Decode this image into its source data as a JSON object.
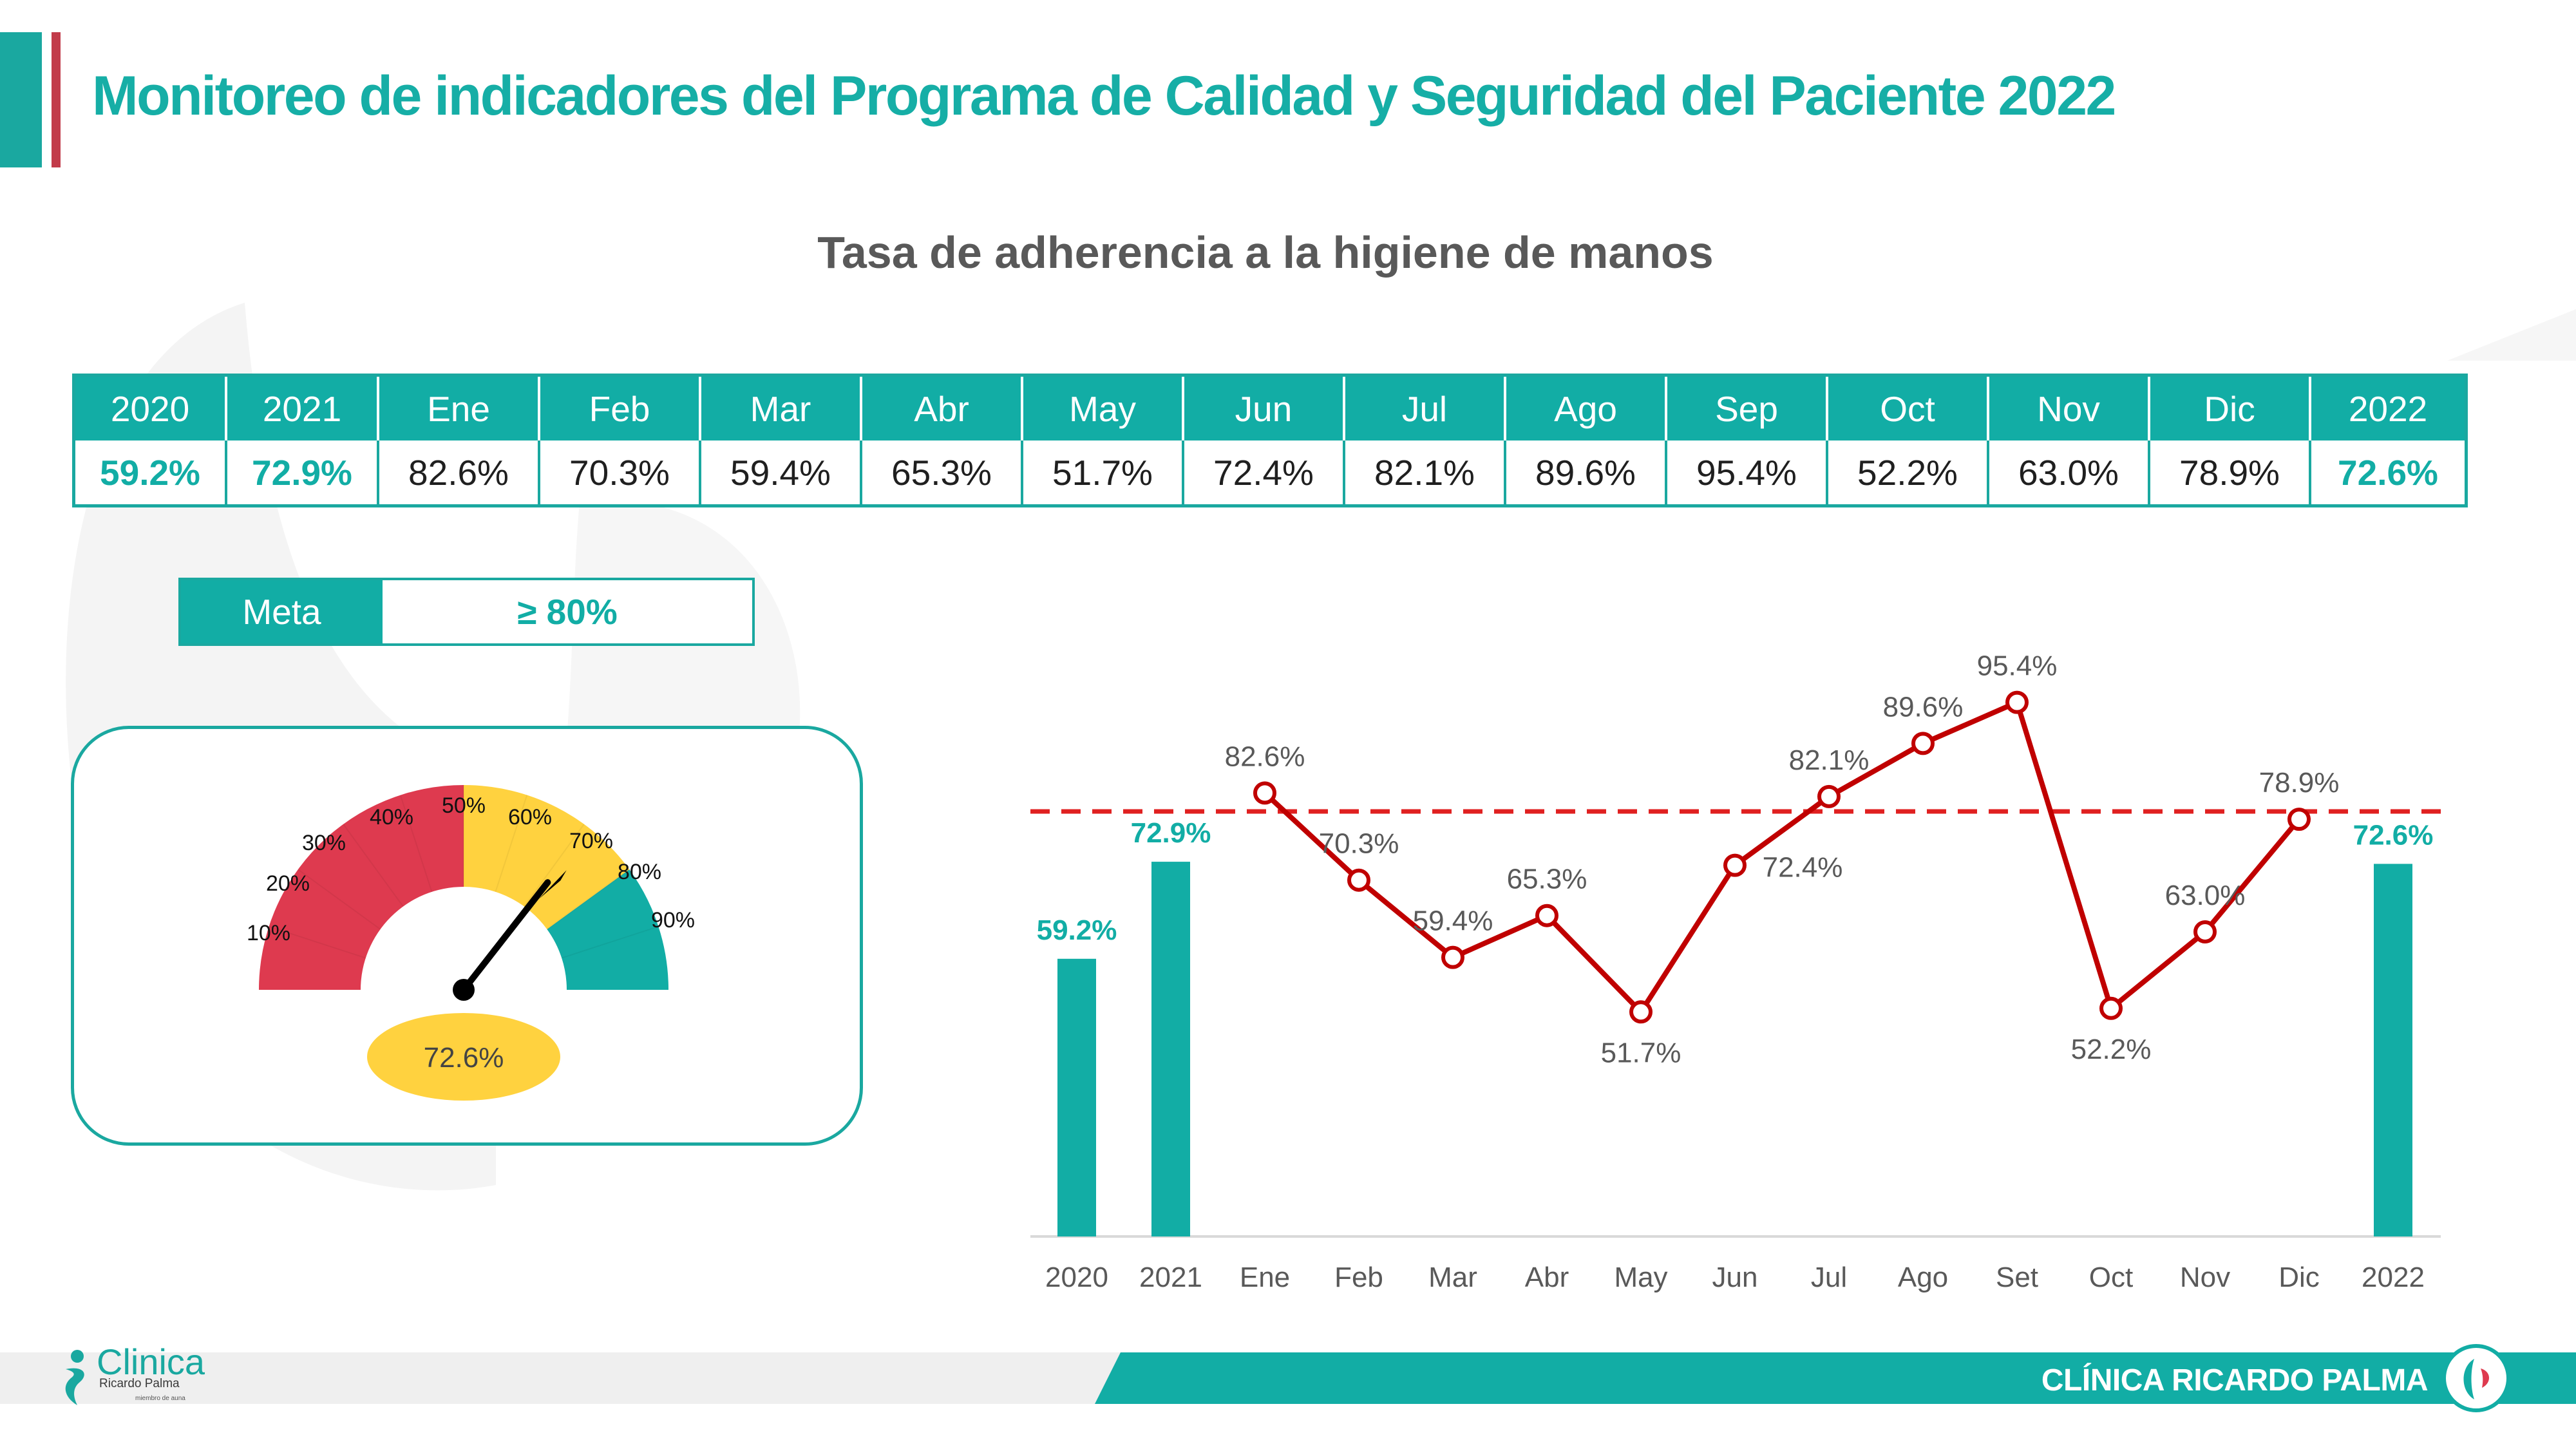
{
  "header": {
    "title": "Monitoreo de indicadores del Programa de Calidad y Seguridad del Paciente 2022",
    "chart_title": "Tasa de adherencia a la higiene de manos"
  },
  "table": {
    "headers": [
      "2020",
      "2021",
      "Ene",
      "Feb",
      "Mar",
      "Abr",
      "May",
      "Jun",
      "Jul",
      "Ago",
      "Sep",
      "Oct",
      "Nov",
      "Dic",
      "2022"
    ],
    "values": [
      "59.2%",
      "72.9%",
      "82.6%",
      "70.3%",
      "59.4%",
      "65.3%",
      "51.7%",
      "72.4%",
      "82.1%",
      "89.6%",
      "95.4%",
      "52.2%",
      "63.0%",
      "78.9%",
      "72.6%"
    ],
    "highlighted": [
      "2020",
      "2021",
      "2022"
    ]
  },
  "meta": {
    "label": "Meta",
    "value": "≥ 80%"
  },
  "gauge": {
    "value_label": "72.6%",
    "value": 72.6,
    "tick_labels": [
      "10%",
      "20%",
      "30%",
      "40%",
      "50%",
      "60%",
      "70%",
      "80%",
      "90%"
    ],
    "colors": {
      "red": "#de3a4f",
      "yellow": "#ffd23f",
      "teal": "#12ada5"
    }
  },
  "chart_data": {
    "type": "bar+line",
    "title": "",
    "categories": [
      "2020",
      "2021",
      "Ene",
      "Feb",
      "Mar",
      "Abr",
      "May",
      "Jun",
      "Jul",
      "Ago",
      "Set",
      "Oct",
      "Nov",
      "Dic",
      "2022"
    ],
    "bar_series": {
      "categories": [
        "2020",
        "2021",
        "2022"
      ],
      "values": [
        59.2,
        72.9,
        72.6
      ],
      "labels": [
        "59.2%",
        "72.9%",
        "72.6%"
      ],
      "color": "#12ada5"
    },
    "line_series": {
      "categories": [
        "Ene",
        "Feb",
        "Mar",
        "Abr",
        "May",
        "Jun",
        "Jul",
        "Ago",
        "Set",
        "Oct",
        "Nov",
        "Dic"
      ],
      "values": [
        82.6,
        70.3,
        59.4,
        65.3,
        51.7,
        72.4,
        82.1,
        89.6,
        95.4,
        52.2,
        63.0,
        78.9
      ],
      "labels": [
        "82.6%",
        "70.3%",
        "59.4%",
        "65.3%",
        "51.7%",
        "72.4%",
        "82.1%",
        "89.6%",
        "95.4%",
        "52.2%",
        "63.0%",
        "78.9%"
      ],
      "color": "#c00000"
    },
    "goal_line": {
      "value": 80,
      "style": "dashed",
      "color": "#e02020"
    },
    "ylim": [
      20,
      100
    ],
    "grid": false,
    "legend": "none"
  },
  "footer": {
    "brand": "CLÍNICA RICARDO PALMA"
  },
  "logo": {
    "word": "Clinica",
    "sub": "Ricardo Palma",
    "tiny": "miembro de auna"
  },
  "colors": {
    "teal": "#12ada5",
    "red_accent": "#c23b4a",
    "line_red": "#c00000",
    "title_gray": "#595959"
  }
}
